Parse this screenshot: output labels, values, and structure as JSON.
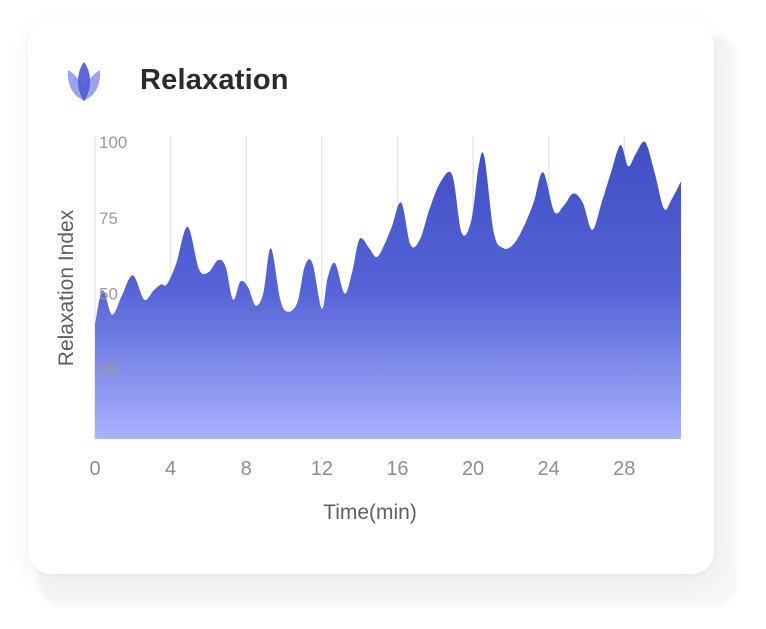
{
  "header": {
    "title": "Relaxation",
    "icon": "lotus-icon"
  },
  "colors": {
    "area_top": "#3f50c4",
    "area_mid": "#5563d6",
    "area_bottom": "#aab2ff",
    "grid": "#e6e6e6",
    "icon_front": "#4f5ad8",
    "icon_back": "#9aa3ee"
  },
  "chart_data": {
    "type": "area",
    "title": "Relaxation",
    "xlabel": "Time(min)",
    "ylabel": "Relaxation Index",
    "xlim": [
      0,
      31
    ],
    "ylim": [
      0,
      105
    ],
    "xticks": [
      0,
      4,
      8,
      12,
      16,
      20,
      24,
      28
    ],
    "yticks": [
      25,
      50,
      75,
      100
    ],
    "grid": "vertical",
    "series": [
      {
        "name": "Relaxation Index",
        "x": [
          0,
          0.4,
          0.9,
          1.4,
          2.0,
          2.6,
          3.1,
          3.5,
          3.8,
          4.3,
          4.9,
          5.5,
          6.0,
          6.5,
          6.9,
          7.3,
          7.7,
          8.1,
          8.5,
          8.9,
          9.3,
          9.8,
          10.2,
          10.7,
          11.1,
          11.5,
          12.0,
          12.3,
          12.7,
          13.2,
          13.6,
          14.0,
          14.5,
          14.9,
          15.3,
          15.7,
          16.2,
          16.7,
          17.2,
          17.7,
          18.3,
          18.9,
          19.4,
          19.9,
          20.3,
          20.6,
          21.1,
          21.6,
          22.1,
          22.6,
          23.2,
          23.7,
          24.3,
          24.8,
          25.3,
          25.8,
          26.3,
          26.8,
          27.3,
          27.8,
          28.2,
          28.6,
          29.1,
          29.6,
          30.1,
          30.5,
          31.0
        ],
        "values": [
          40,
          51,
          43,
          49,
          56,
          48,
          51,
          53,
          53,
          60,
          72,
          58,
          57,
          61,
          59,
          48,
          54,
          52,
          46,
          50,
          65,
          48,
          44,
          47,
          59,
          60,
          45,
          55,
          60,
          50,
          57,
          68,
          65,
          62,
          66,
          72,
          80,
          66,
          68,
          78,
          87,
          89,
          70,
          74,
          92,
          95,
          70,
          65,
          66,
          71,
          80,
          90,
          77,
          79,
          83,
          80,
          71,
          80,
          90,
          99,
          92,
          96,
          100,
          90,
          78,
          81,
          87
        ]
      }
    ]
  }
}
